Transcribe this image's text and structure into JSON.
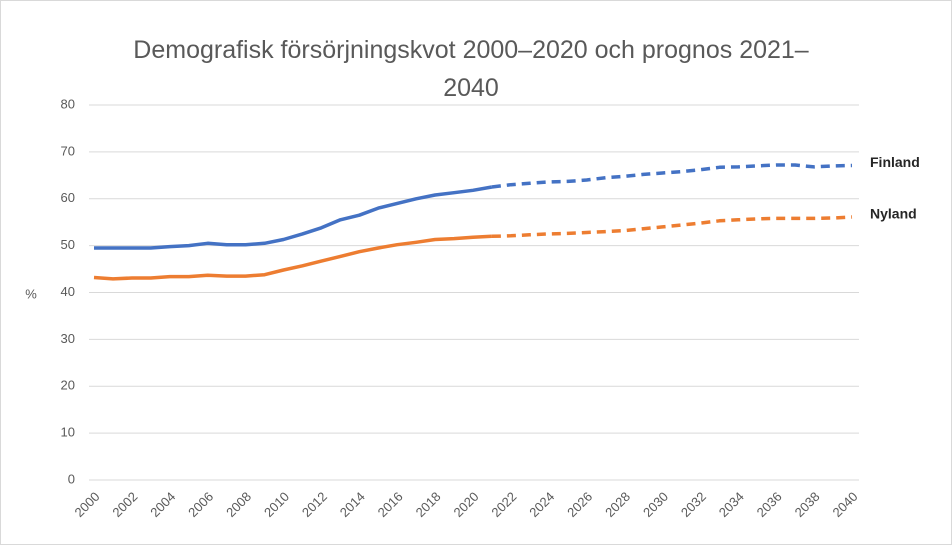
{
  "chart_data": {
    "type": "line",
    "title": "Demografisk försörjningskvot 2000–2020 och prognos 2021–2040",
    "y_label": "%",
    "x": [
      2000,
      2001,
      2002,
      2003,
      2004,
      2005,
      2006,
      2007,
      2008,
      2009,
      2010,
      2011,
      2012,
      2013,
      2014,
      2015,
      2016,
      2017,
      2018,
      2019,
      2020,
      2021,
      2022,
      2023,
      2024,
      2025,
      2026,
      2027,
      2028,
      2029,
      2030,
      2031,
      2032,
      2033,
      2034,
      2035,
      2036,
      2037,
      2038,
      2039,
      2040
    ],
    "series": [
      {
        "name": "Finland",
        "color": "#4472c4",
        "values": [
          49.5,
          49.5,
          49.5,
          49.5,
          49.8,
          50,
          50.5,
          50.2,
          50.2,
          50.5,
          51.3,
          52.5,
          53.8,
          55.5,
          56.5,
          58,
          59,
          60,
          60.8,
          61.3,
          61.8,
          62.5,
          63,
          63.3,
          63.6,
          63.7,
          64,
          64.5,
          64.8,
          65.2,
          65.5,
          65.8,
          66.2,
          66.7,
          66.8,
          67,
          67.2,
          67.2,
          66.8,
          67,
          67.1
        ]
      },
      {
        "name": "Nyland",
        "color": "#ed7d31",
        "values": [
          43.2,
          42.9,
          43.1,
          43.1,
          43.4,
          43.4,
          43.7,
          43.5,
          43.5,
          43.8,
          44.8,
          45.7,
          46.7,
          47.7,
          48.7,
          49.5,
          50.2,
          50.7,
          51.3,
          51.5,
          51.8,
          52,
          52.1,
          52.3,
          52.5,
          52.6,
          52.8,
          53,
          53.2,
          53.6,
          54,
          54.4,
          54.8,
          55.3,
          55.5,
          55.7,
          55.8,
          55.8,
          55.8,
          55.9,
          56.1
        ]
      }
    ],
    "forecast_from": 2021,
    "xlim": [
      2000,
      2040
    ],
    "xticks": [
      2000,
      2002,
      2004,
      2006,
      2008,
      2010,
      2012,
      2014,
      2016,
      2018,
      2020,
      2022,
      2024,
      2026,
      2028,
      2030,
      2032,
      2034,
      2036,
      2038,
      2040
    ],
    "ylim": [
      0,
      80
    ],
    "yticks": [
      0,
      10,
      20,
      30,
      40,
      50,
      60,
      70,
      80
    ],
    "grid": true
  }
}
